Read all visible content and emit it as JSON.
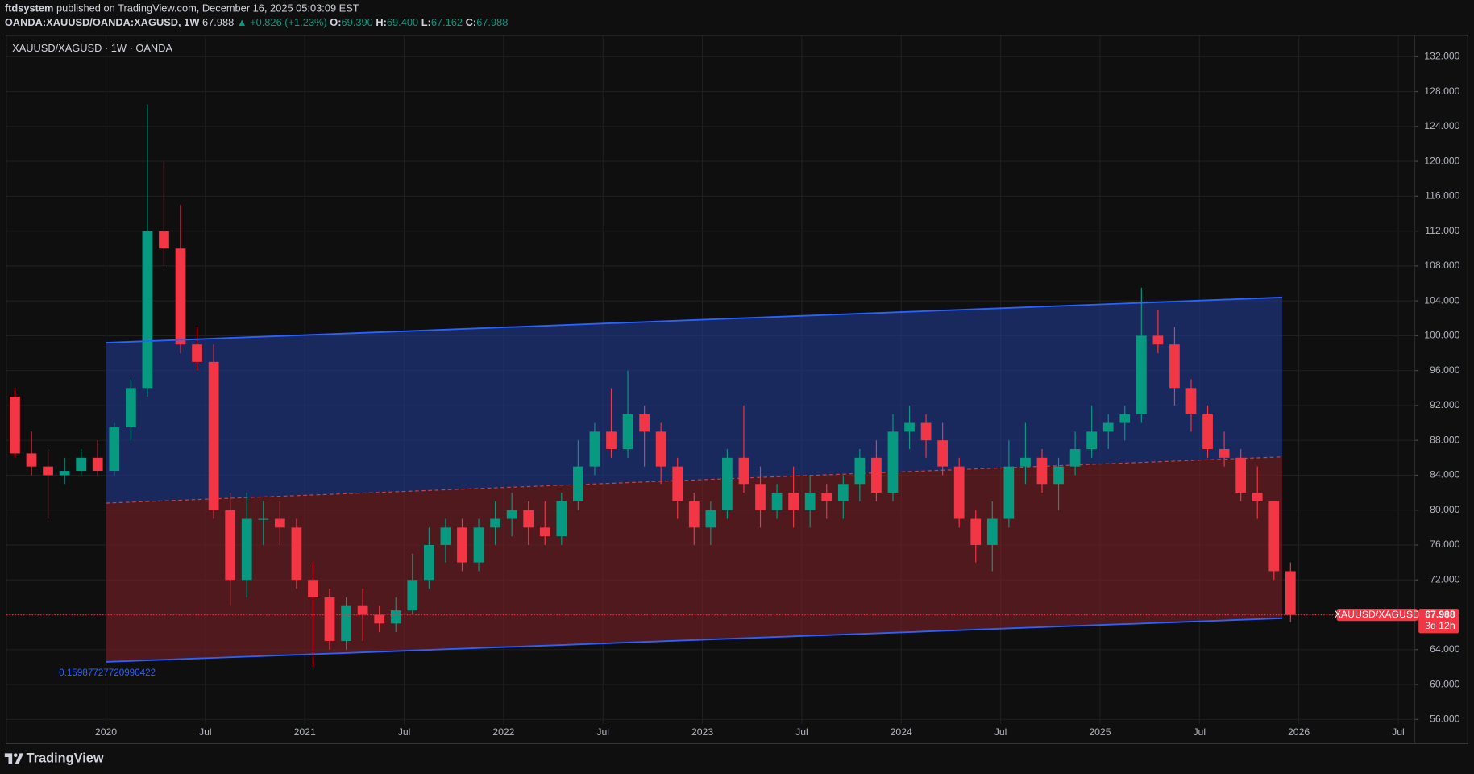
{
  "chart_data": {
    "type": "candlestick",
    "header": {
      "publisher": "ftdsystem",
      "published": "published on TradingView.com, December 16, 2025 05:03:09 EST",
      "symbol": "OANDA:XAUUSD/OANDA:XAGUSD, 1W",
      "last": "67.988",
      "change": "▲ +0.826 (+1.23%)",
      "ohlc": [
        {
          "label": "O:",
          "value": "69.390"
        },
        {
          "label": "H:",
          "value": "69.400"
        },
        {
          "label": "L:",
          "value": "67.162"
        },
        {
          "label": "C:",
          "value": "67.988"
        }
      ]
    },
    "legend": "XAUUSD/XAGUSD · 1W · OANDA",
    "annotation": "0.15987727720990422",
    "price_label": {
      "name": "XAUUSD/XAGUSD",
      "value": 67.988,
      "countdown": "3d 12h"
    },
    "footer": "TradingView",
    "up_color": "#089981",
    "down_color": "#f23645",
    "grid": true,
    "x": [
      "2019-07",
      "2019-08",
      "2019-09",
      "2019-10",
      "2019-11",
      "2019-12",
      "2020-01",
      "2020-02",
      "2020-03",
      "2020-04",
      "2020-05",
      "2020-06",
      "2020-07",
      "2020-08",
      "2020-09",
      "2020-10",
      "2020-11",
      "2020-12",
      "2021-01",
      "2021-02",
      "2021-03",
      "2021-04",
      "2021-05",
      "2021-06",
      "2021-07",
      "2021-08",
      "2021-09",
      "2021-10",
      "2021-11",
      "2021-12",
      "2022-01",
      "2022-02",
      "2022-03",
      "2022-04",
      "2022-05",
      "2022-06",
      "2022-07",
      "2022-08",
      "2022-09",
      "2022-10",
      "2022-11",
      "2022-12",
      "2023-01",
      "2023-02",
      "2023-03",
      "2023-04",
      "2023-05",
      "2023-06",
      "2023-07",
      "2023-08",
      "2023-09",
      "2023-10",
      "2023-11",
      "2023-12",
      "2024-01",
      "2024-02",
      "2024-03",
      "2024-04",
      "2024-05",
      "2024-06",
      "2024-07",
      "2024-08",
      "2024-09",
      "2024-10",
      "2024-11",
      "2024-12",
      "2025-01",
      "2025-02",
      "2025-03",
      "2025-04",
      "2025-05",
      "2025-06",
      "2025-07",
      "2025-08",
      "2025-09",
      "2025-10",
      "2025-11",
      "2025-12"
    ],
    "open": [
      93,
      86.5,
      85,
      84,
      84.5,
      86,
      84.5,
      89.5,
      94,
      112,
      110,
      99,
      97,
      80,
      72,
      79,
      79,
      78,
      72,
      70,
      65,
      69,
      68,
      67,
      68.5,
      72,
      76,
      78,
      74,
      78,
      79,
      80,
      78,
      77,
      81,
      85,
      89,
      87,
      91,
      89,
      85,
      81,
      78,
      80,
      86,
      83,
      80,
      82,
      80,
      82,
      81,
      83,
      86,
      82,
      89,
      90,
      88,
      85,
      79,
      76,
      79,
      85,
      86,
      83,
      85,
      87,
      89,
      90,
      91,
      100,
      99,
      94,
      91,
      87,
      86,
      82,
      81,
      73
    ],
    "high": [
      94,
      89,
      87,
      86,
      87,
      88,
      90,
      95,
      126.5,
      120,
      115,
      101,
      99,
      82,
      82,
      81,
      81,
      79,
      74,
      71,
      70,
      71,
      69,
      70,
      75,
      78,
      79,
      79,
      79,
      81,
      82,
      81,
      81,
      82,
      88,
      90,
      94,
      96,
      92,
      90,
      86,
      82,
      81,
      87,
      92,
      85,
      83,
      85,
      84,
      83,
      84,
      87,
      88,
      91,
      92,
      91,
      90,
      86,
      80,
      81,
      88,
      90,
      87,
      86,
      89,
      92,
      91,
      92,
      105.5,
      103,
      101,
      95,
      92,
      89,
      87,
      85,
      81,
      74
    ],
    "low": [
      86,
      84,
      79,
      83,
      84,
      84,
      84,
      88,
      93,
      108,
      98,
      96,
      79,
      69,
      70,
      76,
      76,
      71,
      62,
      64,
      64,
      65,
      66,
      66,
      68,
      71,
      74,
      73,
      73,
      76,
      77,
      76,
      76,
      76,
      80,
      84,
      86,
      86,
      85,
      83,
      79,
      76,
      76,
      79,
      82,
      78,
      79,
      78,
      78,
      79,
      79,
      81,
      81,
      81,
      87,
      86,
      84,
      78,
      74,
      73,
      78,
      83,
      82,
      80,
      84,
      86,
      87,
      88,
      90,
      98,
      92,
      89,
      86,
      85,
      81,
      79,
      72,
      67.162
    ],
    "close": [
      86.5,
      85,
      84,
      84.5,
      86,
      84.5,
      89.5,
      94,
      112,
      110,
      99,
      97,
      80,
      72,
      79,
      79,
      78,
      72,
      70,
      65,
      69,
      68,
      67,
      68.5,
      72,
      76,
      78,
      74,
      78,
      79,
      80,
      78,
      77,
      81,
      85,
      89,
      87,
      91,
      89,
      85,
      81,
      78,
      80,
      86,
      83,
      80,
      82,
      80,
      82,
      81,
      83,
      86,
      82,
      89,
      90,
      88,
      85,
      79,
      76,
      79,
      85,
      86,
      83,
      85,
      87,
      89,
      90,
      91,
      100,
      99,
      94,
      91,
      87,
      86,
      82,
      81,
      73,
      67.988
    ],
    "channel": {
      "start": "2020-01",
      "end": "2025-12",
      "upper": [
        99.2,
        104.4
      ],
      "middle": [
        80.8,
        86.1
      ],
      "lower": [
        62.6,
        67.6
      ],
      "line_color": "#2962ff",
      "upper_fill": "#1f3a93",
      "lower_fill": "#7a1f27",
      "middle_color": "#c2454f"
    },
    "xlim": [
      "2019-07",
      "2026-08"
    ],
    "xticks": [
      {
        "value": "2020-01",
        "label": "2020"
      },
      {
        "value": "2020-07",
        "label": "Jul"
      },
      {
        "value": "2021-01",
        "label": "2021"
      },
      {
        "value": "2021-07",
        "label": "Jul"
      },
      {
        "value": "2022-01",
        "label": "2022"
      },
      {
        "value": "2022-07",
        "label": "Jul"
      },
      {
        "value": "2023-01",
        "label": "2023"
      },
      {
        "value": "2023-07",
        "label": "Jul"
      },
      {
        "value": "2024-01",
        "label": "2024"
      },
      {
        "value": "2024-07",
        "label": "Jul"
      },
      {
        "value": "2025-01",
        "label": "2025"
      },
      {
        "value": "2025-07",
        "label": "Jul"
      },
      {
        "value": "2026-01",
        "label": "2026"
      },
      {
        "value": "2026-07",
        "label": "Jul"
      }
    ],
    "ylim": [
      53.3,
      134.4
    ],
    "yticks": [
      {
        "value": 56,
        "label": "56.000"
      },
      {
        "value": 60,
        "label": "60.000"
      },
      {
        "value": 64,
        "label": "64.000"
      },
      {
        "value": 68,
        "label": "68.000"
      },
      {
        "value": 72,
        "label": "72.000"
      },
      {
        "value": 76,
        "label": "76.000"
      },
      {
        "value": 80,
        "label": "80.000"
      },
      {
        "value": 84,
        "label": "84.000"
      },
      {
        "value": 88,
        "label": "88.000"
      },
      {
        "value": 92,
        "label": "92.000"
      },
      {
        "value": 96,
        "label": "96.000"
      },
      {
        "value": 100,
        "label": "100.000"
      },
      {
        "value": 104,
        "label": "104.000"
      },
      {
        "value": 108,
        "label": "108.000"
      },
      {
        "value": 112,
        "label": "112.000"
      },
      {
        "value": 116,
        "label": "116.000"
      },
      {
        "value": 120,
        "label": "120.000"
      },
      {
        "value": 124,
        "label": "124.000"
      },
      {
        "value": 128,
        "label": "128.000"
      },
      {
        "value": 132,
        "label": "132.000"
      }
    ]
  }
}
